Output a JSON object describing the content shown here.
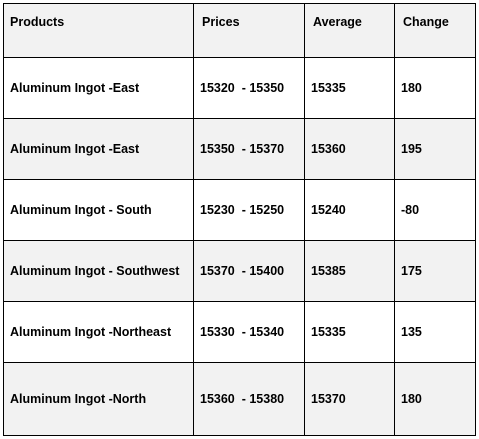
{
  "table": {
    "headers": [
      "Products",
      "Prices",
      "Average",
      "Change"
    ],
    "rows": [
      {
        "product": "Aluminum Ingot -East",
        "prices": "15320  - 15350",
        "average": "15335",
        "change": "180"
      },
      {
        "product": "Aluminum Ingot -East",
        "prices": "15350  - 15370",
        "average": "15360",
        "change": "195"
      },
      {
        "product": "Aluminum Ingot - South",
        "prices": "15230  - 15250",
        "average": "15240",
        "change": "-80"
      },
      {
        "product": "Aluminum Ingot - Southwest",
        "prices": "15370  - 15400",
        "average": "15385",
        "change": "175"
      },
      {
        "product": "Aluminum Ingot -Northeast",
        "prices": "15330  - 15340",
        "average": "15335",
        "change": "135"
      },
      {
        "product": "Aluminum Ingot -North",
        "prices": "15360  - 15380",
        "average": "15370",
        "change": "180"
      }
    ]
  },
  "colors": {
    "header_background": "#f2f2f2",
    "alternate_row_background": "#f2f2f2",
    "border": "#000000"
  }
}
